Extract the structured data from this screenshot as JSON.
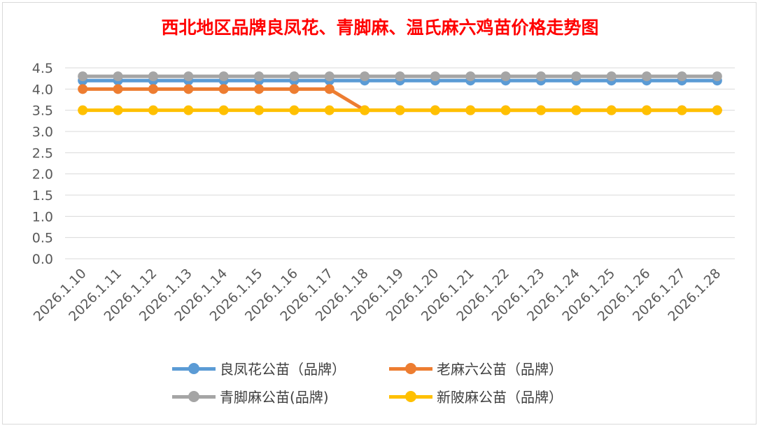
{
  "chart_data": {
    "type": "line",
    "title": "西北地区品牌良凤花、青脚麻、温氏麻六鸡苗价格走势图",
    "xlabel": "",
    "ylabel": "",
    "categories": [
      "2026.1.10",
      "2026.1.11",
      "2026.1.12",
      "2026.1.13",
      "2026.1.14",
      "2026.1.15",
      "2026.1.16",
      "2026.1.17",
      "2026.1.18",
      "2026.1.19",
      "2026.1.20",
      "2026.1.21",
      "2026.1.22",
      "2026.1.23",
      "2026.1.24",
      "2026.1.25",
      "2026.1.26",
      "2026.1.27",
      "2026.1.28"
    ],
    "ylim": [
      0,
      4.5
    ],
    "yticks": [
      "0.0",
      "0.5",
      "1.0",
      "1.5",
      "2.0",
      "2.5",
      "3.0",
      "3.5",
      "4.0",
      "4.5"
    ],
    "grid": true,
    "legend_position": "bottom",
    "series": [
      {
        "name": "良凤花公苗（品牌）",
        "color": "#5b9bd5",
        "values": [
          4.2,
          4.2,
          4.2,
          4.2,
          4.2,
          4.2,
          4.2,
          4.2,
          4.2,
          4.2,
          4.2,
          4.2,
          4.2,
          4.2,
          4.2,
          4.2,
          4.2,
          4.2,
          4.2
        ]
      },
      {
        "name": "老麻六公苗（品牌）",
        "color": "#ed7d31",
        "values": [
          4.0,
          4.0,
          4.0,
          4.0,
          4.0,
          4.0,
          4.0,
          4.0,
          3.5,
          3.5,
          3.5,
          3.5,
          3.5,
          3.5,
          3.5,
          3.5,
          3.5,
          3.5,
          3.5
        ]
      },
      {
        "name": "青脚麻公苗(品牌)",
        "color": "#a5a5a5",
        "values": [
          4.3,
          4.3,
          4.3,
          4.3,
          4.3,
          4.3,
          4.3,
          4.3,
          4.3,
          4.3,
          4.3,
          4.3,
          4.3,
          4.3,
          4.3,
          4.3,
          4.3,
          4.3,
          4.3
        ]
      },
      {
        "name": "新陂麻公苗（品牌）",
        "color": "#ffc000",
        "values": [
          3.5,
          3.5,
          3.5,
          3.5,
          3.5,
          3.5,
          3.5,
          3.5,
          3.5,
          3.5,
          3.5,
          3.5,
          3.5,
          3.5,
          3.5,
          3.5,
          3.5,
          3.5,
          3.5
        ]
      }
    ]
  }
}
